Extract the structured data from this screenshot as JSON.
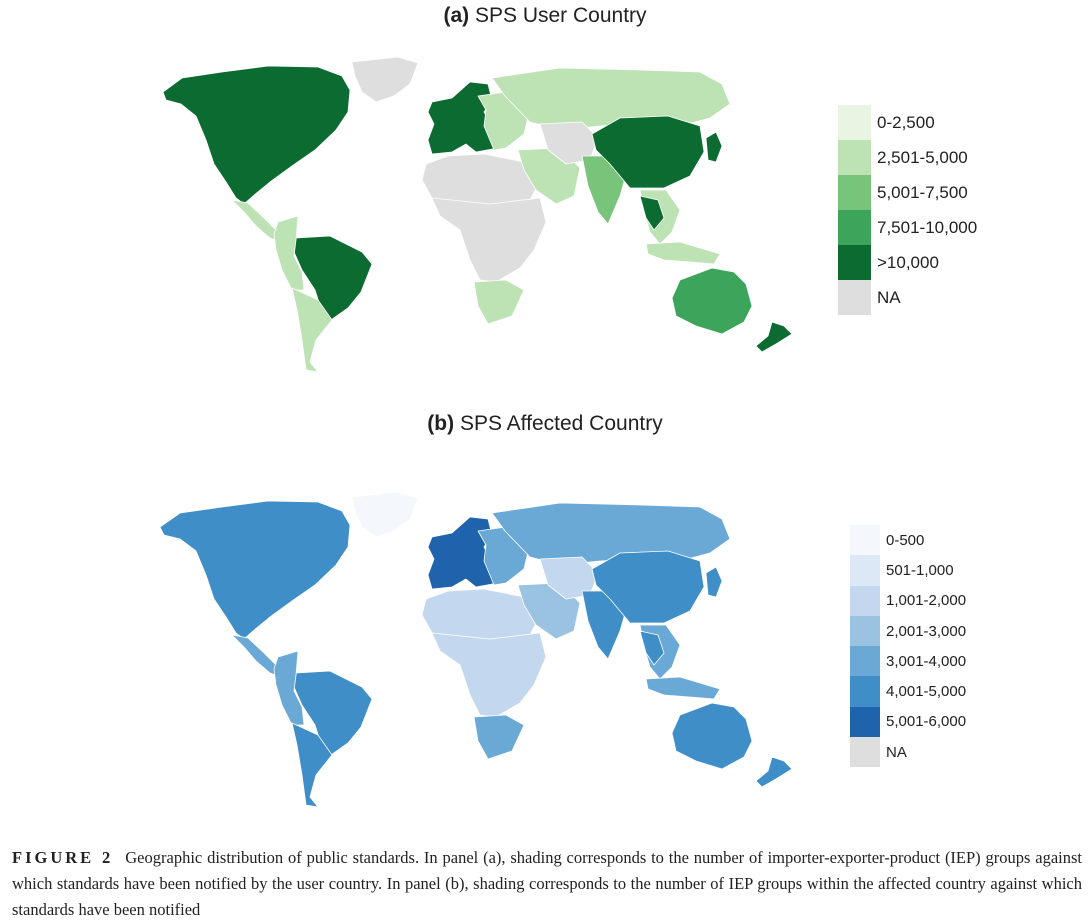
{
  "panels": [
    {
      "letter": "(a)",
      "title": "SPS User Country",
      "legend": [
        {
          "label": "0-2,500",
          "color": "#e8f5e3"
        },
        {
          "label": "2,501-5,000",
          "color": "#bde3b5"
        },
        {
          "label": "5,001-7,500",
          "color": "#78c47a"
        },
        {
          "label": "7,501-10,000",
          "color": "#3da55b"
        },
        {
          "label": ">10,000",
          "color": "#0b6b30"
        },
        {
          "label": "NA",
          "color": "#dedede"
        }
      ],
      "regions": {
        "north_america": ">10,000",
        "greenland": "NA",
        "central_america": "2,501-5,000",
        "brazil": ">10,000",
        "andean_south_america": "2,501-5,000",
        "southern_cone": "2,501-5,000",
        "western_europe": ">10,000",
        "eastern_europe": "2,501-5,000",
        "russia": "2,501-5,000",
        "north_africa": "NA",
        "sub_saharan_africa": "NA",
        "southern_africa": "2,501-5,000",
        "middle_east": "2,501-5,000",
        "central_asia": "NA",
        "india": "5,001-7,500",
        "china": ">10,000",
        "japan": ">10,000",
        "southeast_asia": "2,501-5,000",
        "thailand": ">10,000",
        "indonesia": "2,501-5,000",
        "australia": "7,501-10,000",
        "new_zealand": ">10,000"
      }
    },
    {
      "letter": "(b)",
      "title": "SPS Affected Country",
      "legend": [
        {
          "label": "0-500",
          "color": "#f4f8fd"
        },
        {
          "label": "501-1,000",
          "color": "#dce8f6"
        },
        {
          "label": "1,001-2,000",
          "color": "#c3d8ee"
        },
        {
          "label": "2,001-3,000",
          "color": "#9ac3e1"
        },
        {
          "label": "3,001-4,000",
          "color": "#6aa8d6"
        },
        {
          "label": "4,001-5,000",
          "color": "#3f8ec8"
        },
        {
          "label": "5,001-6,000",
          "color": "#1f63ad"
        },
        {
          "label": "NA",
          "color": "#dedede"
        }
      ],
      "regions": {
        "north_america": "4,001-5,000",
        "greenland": "0-500",
        "central_america": "3,001-4,000",
        "brazil": "4,001-5,000",
        "andean_south_america": "3,001-4,000",
        "southern_cone": "4,001-5,000",
        "western_europe": "5,001-6,000",
        "eastern_europe": "3,001-4,000",
        "russia": "3,001-4,000",
        "north_africa": "1,001-2,000",
        "sub_saharan_africa": "1,001-2,000",
        "southern_africa": "3,001-4,000",
        "middle_east": "2,001-3,000",
        "central_asia": "1,001-2,000",
        "india": "4,001-5,000",
        "china": "4,001-5,000",
        "japan": "4,001-5,000",
        "southeast_asia": "3,001-4,000",
        "thailand": "4,001-5,000",
        "indonesia": "3,001-4,000",
        "australia": "4,001-5,000",
        "new_zealand": "4,001-5,000"
      }
    }
  ],
  "caption": {
    "label": "FIGURE 2",
    "text": "Geographic distribution of public standards. In panel (a), shading corresponds to the number of importer-exporter-product (IEP) groups against which standards have been notified by the user country. In panel (b), shading corresponds to the number of IEP groups within the affected country against which standards have been notified"
  }
}
